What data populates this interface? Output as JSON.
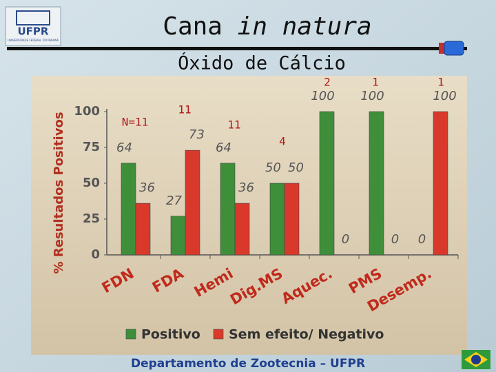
{
  "header": {
    "logo_text": "UFPR",
    "logo_subtext": "UNIVERSIDADE FEDERAL DO PARANÁ",
    "title": [
      "Cana",
      "in natura"
    ]
  },
  "chart_data": {
    "type": "bar",
    "subtitle": "Óxido de Cálcio",
    "y_label": "% Resultados Positivos",
    "categories": [
      "FDN",
      "FDA",
      "Hemi",
      "Dig.MS",
      "Aquec.",
      "PMS",
      "Desemp."
    ],
    "series": [
      {
        "name": "Positivo",
        "color": "#3f8f3a",
        "values": [
          64,
          27,
          64,
          50,
          100,
          100,
          0
        ]
      },
      {
        "name": "Sem efeito/ Negativo",
        "color": "#d8392b",
        "values": [
          36,
          73,
          36,
          50,
          0,
          0,
          100
        ]
      }
    ],
    "annotations": [
      "N=11",
      "11",
      "11",
      "4",
      "2",
      "1",
      "1"
    ],
    "ylim": [
      0,
      100
    ],
    "yticks": [
      0,
      25,
      50,
      75,
      100
    ],
    "grid": false
  },
  "footer": "Departamento de Zootecnia – UFPR"
}
